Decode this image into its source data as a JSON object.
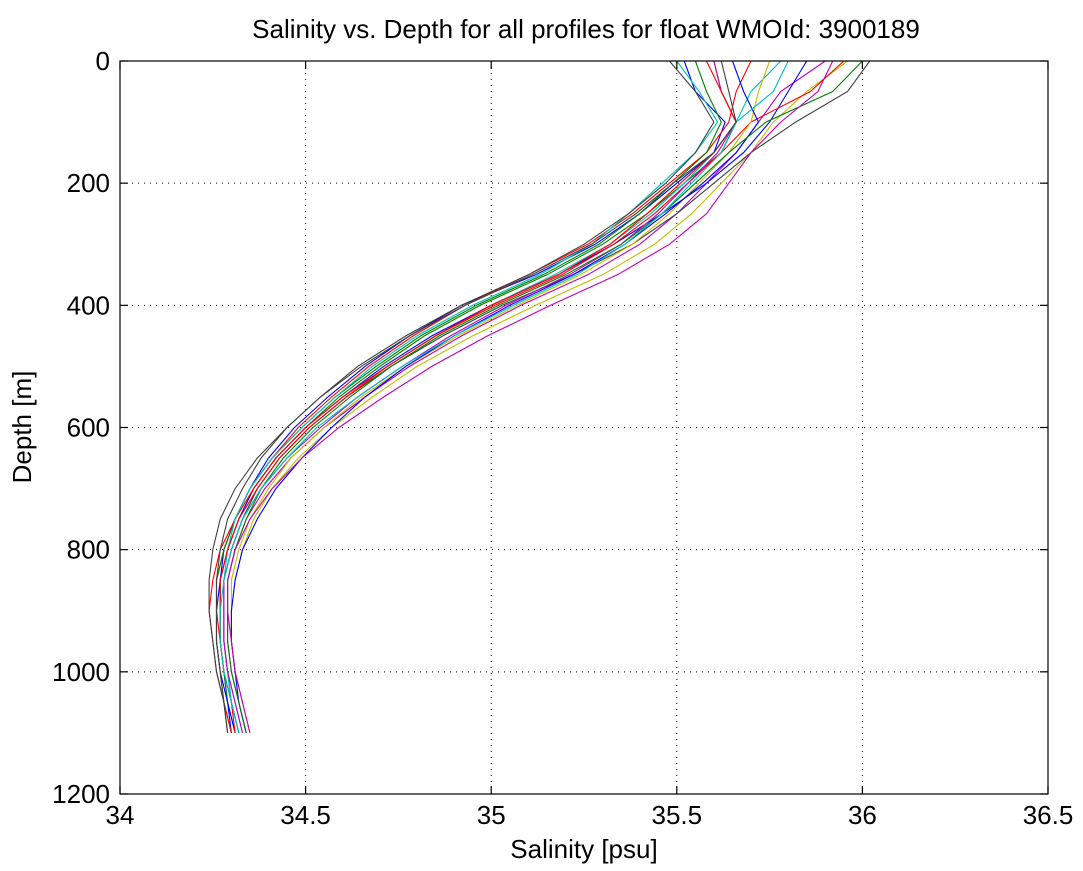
{
  "chart_data": {
    "type": "line",
    "title": "Salinity vs. Depth for all profiles for float WMOId: 3900189",
    "xlabel": "Salinity [psu]",
    "ylabel": "Depth [m]",
    "xlim": [
      34,
      36.5
    ],
    "ylim": [
      0,
      1200
    ],
    "y_reversed": true,
    "grid": true,
    "xticks": [
      "34",
      "34.5",
      "35",
      "35.5",
      "36",
      "36.5"
    ],
    "yticks": [
      "0",
      "200",
      "400",
      "600",
      "800",
      "1000",
      "1200"
    ],
    "xtick_values": [
      34,
      34.5,
      35,
      35.5,
      36,
      36.5
    ],
    "ytick_values": [
      0,
      200,
      400,
      600,
      800,
      1000,
      1200
    ],
    "colors": [
      "#0000ff",
      "#008000",
      "#ff0000",
      "#00bfbf",
      "#bf00bf",
      "#bfbf00",
      "#404040"
    ],
    "depth_levels": [
      0,
      50,
      100,
      150,
      200,
      250,
      300,
      350,
      400,
      450,
      500,
      550,
      600,
      650,
      700,
      750,
      800,
      850,
      900,
      950,
      1000,
      1050,
      1100
    ],
    "series": [
      {
        "color": "#0000ff",
        "values": [
          35.52,
          35.55,
          35.63,
          35.6,
          35.5,
          35.4,
          35.28,
          35.12,
          34.92,
          34.78,
          34.66,
          34.56,
          34.47,
          34.4,
          34.35,
          34.31,
          34.28,
          34.27,
          34.27,
          34.27,
          34.28,
          34.29,
          34.3
        ]
      },
      {
        "color": "#008000",
        "values": [
          35.6,
          35.62,
          35.66,
          35.62,
          35.52,
          35.42,
          35.3,
          35.15,
          34.97,
          34.82,
          34.7,
          34.59,
          34.5,
          34.42,
          34.36,
          34.32,
          34.29,
          34.27,
          34.27,
          34.27,
          34.28,
          34.29,
          34.31
        ]
      },
      {
        "color": "#ff0000",
        "values": [
          35.7,
          35.66,
          35.64,
          35.58,
          35.48,
          35.38,
          35.26,
          35.1,
          34.93,
          34.79,
          34.67,
          34.57,
          34.48,
          34.41,
          34.35,
          34.31,
          34.28,
          34.26,
          34.26,
          34.27,
          34.28,
          34.3,
          34.32
        ]
      },
      {
        "color": "#00bfbf",
        "values": [
          35.78,
          35.7,
          35.66,
          35.6,
          35.52,
          35.43,
          35.32,
          35.17,
          35.0,
          34.85,
          34.72,
          34.61,
          34.51,
          34.43,
          34.37,
          34.33,
          34.3,
          34.28,
          34.28,
          34.28,
          34.29,
          34.31,
          34.33
        ]
      },
      {
        "color": "#bf00bf",
        "values": [
          35.9,
          35.78,
          35.72,
          35.66,
          35.58,
          35.5,
          35.4,
          35.26,
          35.08,
          34.92,
          34.78,
          34.66,
          34.55,
          34.46,
          34.39,
          34.34,
          34.31,
          34.29,
          34.29,
          34.29,
          34.3,
          34.32,
          34.34
        ]
      },
      {
        "color": "#bfbf00",
        "values": [
          35.96,
          35.85,
          35.76,
          35.7,
          35.62,
          35.54,
          35.44,
          35.3,
          35.12,
          34.95,
          34.8,
          34.68,
          34.57,
          34.48,
          34.41,
          34.36,
          34.33,
          34.31,
          34.3,
          34.3,
          34.31,
          34.33,
          34.35
        ]
      },
      {
        "color": "#404040",
        "values": [
          36.02,
          35.96,
          35.82,
          35.7,
          35.6,
          35.5,
          35.38,
          35.22,
          35.03,
          34.87,
          34.73,
          34.61,
          34.51,
          34.43,
          34.37,
          34.33,
          34.3,
          34.28,
          34.28,
          34.28,
          34.29,
          34.3,
          34.32
        ]
      },
      {
        "color": "#0000ff",
        "values": [
          35.85,
          35.8,
          35.75,
          35.68,
          35.58,
          35.46,
          35.33,
          35.18,
          35.0,
          34.84,
          34.71,
          34.6,
          34.5,
          34.42,
          34.36,
          34.32,
          34.29,
          34.27,
          34.26,
          34.26,
          34.27,
          34.29,
          34.31
        ]
      },
      {
        "color": "#008000",
        "values": [
          35.55,
          35.58,
          35.62,
          35.58,
          35.49,
          35.4,
          35.29,
          35.14,
          34.96,
          34.81,
          34.69,
          34.58,
          34.49,
          34.41,
          34.35,
          34.31,
          34.28,
          34.26,
          34.26,
          34.26,
          34.27,
          34.28,
          34.3
        ]
      },
      {
        "color": "#ff0000",
        "values": [
          35.95,
          35.86,
          35.7,
          35.62,
          35.53,
          35.44,
          35.33,
          35.19,
          35.01,
          34.85,
          34.72,
          34.6,
          34.5,
          34.42,
          34.36,
          34.31,
          34.27,
          34.25,
          34.24,
          34.25,
          34.26,
          34.28,
          34.3
        ]
      },
      {
        "color": "#00bfbf",
        "values": [
          35.5,
          35.56,
          35.61,
          35.55,
          35.46,
          35.37,
          35.27,
          35.13,
          34.95,
          34.8,
          34.68,
          34.58,
          34.49,
          34.41,
          34.35,
          34.31,
          34.29,
          34.28,
          34.28,
          34.28,
          34.29,
          34.3,
          34.32
        ]
      },
      {
        "color": "#bf00bf",
        "values": [
          35.6,
          35.62,
          35.66,
          35.61,
          35.53,
          35.45,
          35.35,
          35.21,
          35.04,
          34.89,
          34.76,
          34.64,
          34.54,
          34.45,
          34.38,
          34.33,
          34.3,
          34.28,
          34.28,
          34.28,
          34.29,
          34.31,
          34.33
        ]
      },
      {
        "color": "#bfbf00",
        "values": [
          35.75,
          35.72,
          35.7,
          35.64,
          35.56,
          35.48,
          35.38,
          35.24,
          35.07,
          34.91,
          34.77,
          34.65,
          34.55,
          34.46,
          34.4,
          34.35,
          34.32,
          34.3,
          34.3,
          34.3,
          34.31,
          34.33,
          34.35
        ]
      },
      {
        "color": "#404040",
        "values": [
          35.48,
          35.55,
          35.6,
          35.55,
          35.47,
          35.37,
          35.25,
          35.1,
          34.92,
          34.77,
          34.64,
          34.54,
          34.45,
          34.38,
          34.33,
          34.29,
          34.27,
          34.26,
          34.26,
          34.26,
          34.27,
          34.28,
          34.29
        ]
      },
      {
        "color": "#0000ff",
        "values": [
          35.65,
          35.68,
          35.72,
          35.66,
          35.57,
          35.47,
          35.36,
          35.22,
          35.05,
          34.9,
          34.77,
          34.66,
          34.57,
          34.49,
          34.42,
          34.37,
          34.33,
          34.31,
          34.3,
          34.3,
          34.31,
          34.32,
          34.34
        ]
      },
      {
        "color": "#008000",
        "values": [
          36.0,
          35.92,
          35.74,
          35.64,
          35.55,
          35.46,
          35.35,
          35.2,
          35.02,
          34.86,
          34.73,
          34.62,
          34.52,
          34.44,
          34.38,
          34.34,
          34.31,
          34.29,
          34.29,
          34.29,
          34.3,
          34.32,
          34.34
        ]
      },
      {
        "color": "#ff0000",
        "values": [
          35.58,
          35.62,
          35.66,
          35.6,
          35.51,
          35.42,
          35.32,
          35.18,
          35.0,
          34.85,
          34.72,
          34.61,
          34.51,
          34.43,
          34.37,
          34.32,
          34.29,
          34.27,
          34.27,
          34.27,
          34.28,
          34.3,
          34.31
        ]
      },
      {
        "color": "#00bfbf",
        "values": [
          35.8,
          35.76,
          35.66,
          35.62,
          35.54,
          35.46,
          35.36,
          35.23,
          35.06,
          34.9,
          34.76,
          34.64,
          34.53,
          34.45,
          34.38,
          34.33,
          34.3,
          34.28,
          34.27,
          34.27,
          34.28,
          34.3,
          34.32
        ]
      },
      {
        "color": "#bf00bf",
        "values": [
          35.92,
          35.88,
          35.78,
          35.7,
          35.64,
          35.58,
          35.48,
          35.34,
          35.16,
          34.99,
          34.84,
          34.71,
          34.59,
          34.49,
          34.41,
          34.35,
          34.31,
          34.29,
          34.29,
          34.3,
          34.31,
          34.33,
          34.35
        ]
      },
      {
        "color": "#404040",
        "values": [
          35.62,
          35.64,
          35.66,
          35.6,
          35.49,
          35.39,
          35.27,
          35.11,
          34.93,
          34.78,
          34.65,
          34.54,
          34.45,
          34.37,
          34.31,
          34.27,
          34.25,
          34.24,
          34.24,
          34.25,
          34.26,
          34.28,
          34.29
        ]
      }
    ]
  }
}
